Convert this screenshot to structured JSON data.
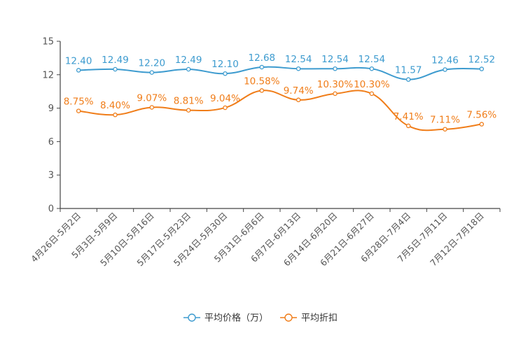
{
  "chart_data": {
    "type": "line",
    "title": "",
    "xlabel": "",
    "ylabel": "",
    "ylim": [
      0,
      15
    ],
    "yticks": [
      0,
      3,
      6,
      9,
      12,
      15
    ],
    "grid": false,
    "legend_position": "bottom-center",
    "categories": [
      "4月26日-5月2日",
      "5月3日-5月9日",
      "5月10日-5月16日",
      "5月17日-5月23日",
      "5月24日-5月30日",
      "5月31日-6月6日",
      "6月7日-6月13日",
      "6月14日-6月20日",
      "6月21日-6月27日",
      "6月28日-7月4日",
      "7月5日-7月11日",
      "7月12日-7月18日"
    ],
    "series": [
      {
        "name": "平均价格（万）",
        "color": "#3d9bcf",
        "values": [
          12.4,
          12.49,
          12.2,
          12.49,
          12.1,
          12.68,
          12.54,
          12.54,
          12.54,
          11.57,
          12.46,
          12.52
        ],
        "labels": [
          "12.40",
          "12.49",
          "12.20",
          "12.49",
          "12.10",
          "12.68",
          "12.54",
          "12.54",
          "12.54",
          "11.57",
          "12.46",
          "12.52"
        ]
      },
      {
        "name": "平均折扣",
        "color": "#f07d19",
        "values": [
          8.75,
          8.4,
          9.07,
          8.81,
          9.04,
          10.58,
          9.74,
          10.3,
          10.3,
          7.41,
          7.11,
          7.56
        ],
        "labels": [
          "8.75%",
          "8.40%",
          "9.07%",
          "8.81%",
          "9.04%",
          "10.58%",
          "9.74%",
          "10.30%",
          "10.30%",
          "7.41%",
          "7.11%",
          "7.56%"
        ]
      }
    ]
  }
}
